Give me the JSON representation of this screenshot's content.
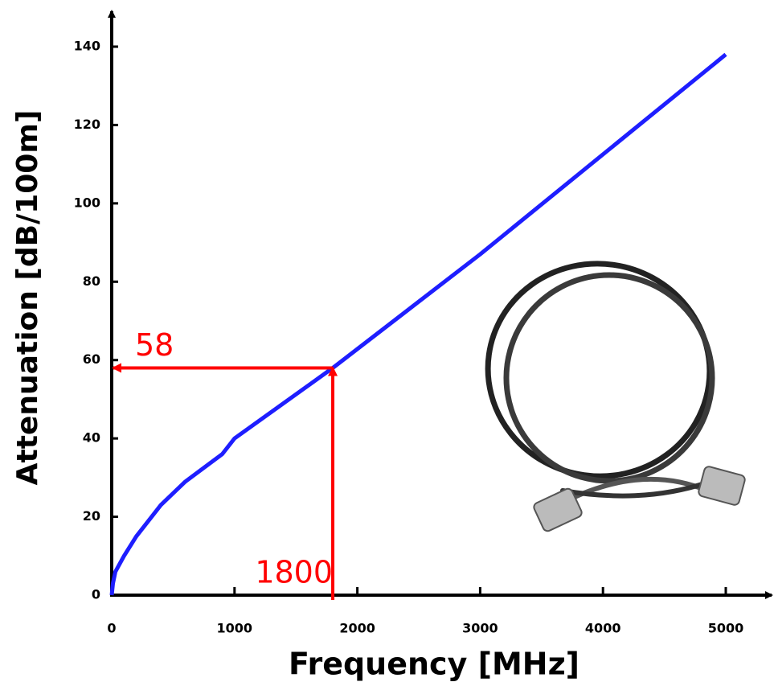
{
  "chart_data": {
    "type": "line",
    "x_label": "Frequency [MHz]",
    "y_label": "Attenuation [dB/100m]",
    "xlim": [
      0,
      5000
    ],
    "ylim": [
      0,
      140
    ],
    "xticks": [
      0,
      1000,
      2000,
      3000,
      4000,
      5000
    ],
    "yticks": [
      0,
      20,
      40,
      60,
      80,
      100,
      120,
      140
    ],
    "series": [
      {
        "color": "#1e1eff",
        "x": [
          0,
          10,
          30,
          100,
          200,
          400,
          600,
          900,
          1000,
          1800,
          3000,
          5000
        ],
        "values": [
          0,
          3,
          6,
          10,
          15,
          23,
          29,
          36,
          40,
          58,
          87,
          138
        ]
      }
    ],
    "reference": {
      "x": 1800,
      "y": 58,
      "color": "#ff0000"
    }
  }
}
